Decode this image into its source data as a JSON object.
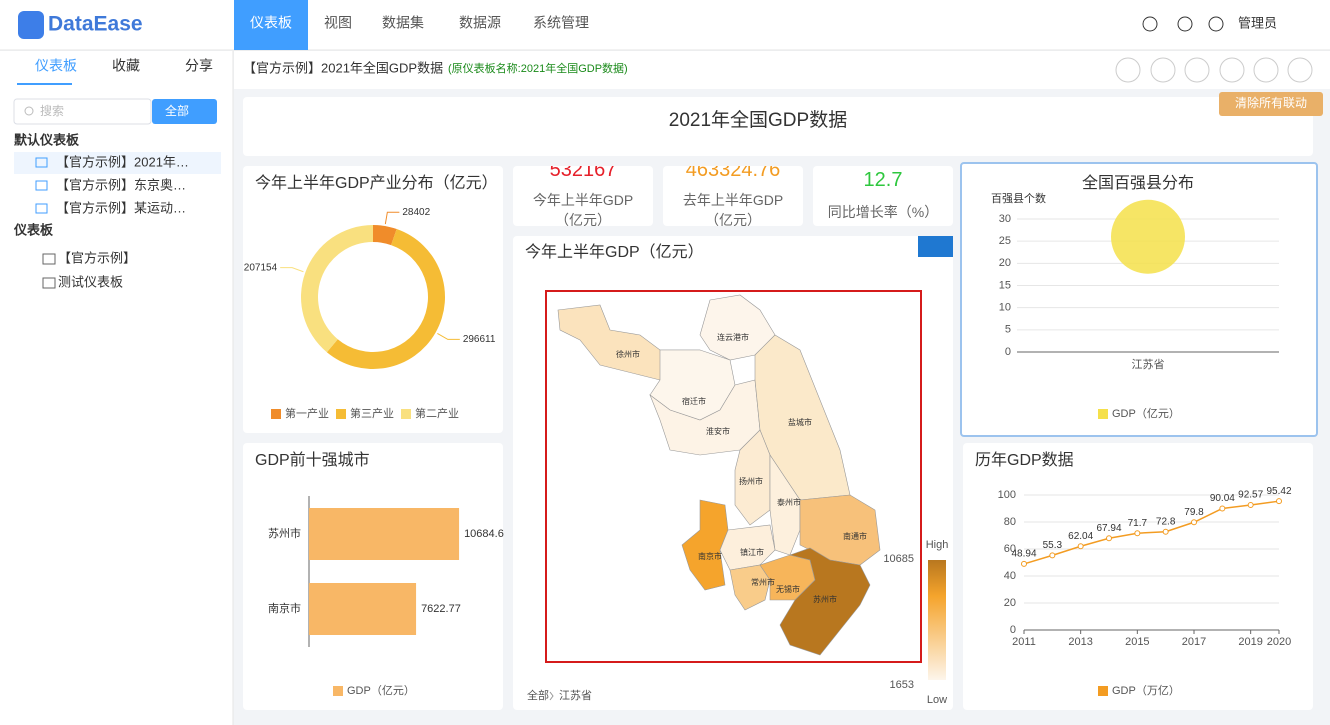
{
  "nav": {
    "logo": "DataEase",
    "menu": [
      "仪表板",
      "视图",
      "数据集",
      "数据源",
      "系统管理"
    ],
    "user": "管理员"
  },
  "sidebar": {
    "tabs": [
      "仪表板",
      "收藏",
      "分享"
    ],
    "search_placeholder": "搜索",
    "filter": "全部",
    "default_section": "默认仪表板",
    "default_items": [
      "【官方示例】2021年…",
      "【官方示例】东京奥…",
      "【官方示例】某运动…"
    ],
    "section": "仪表板",
    "tree": [
      "【官方示例】",
      "测试仪表板"
    ]
  },
  "header": {
    "title": "【官方示例】2021年全国GDP数据",
    "original_name": "(原仪表板名称:2021年全国GDP数据)",
    "clear_button": "清除所有联动"
  },
  "dashboard_title": "2021年全国GDP数据",
  "charts": [
    {
      "type": "pie",
      "title": "今年上半年GDP产业分布（亿元）",
      "categories": [
        "第一产业",
        "第三产业",
        "第二产业"
      ],
      "values": [
        28402,
        296611,
        207154
      ],
      "colors": [
        "#f08c2a",
        "#f5bc35",
        "#f9e07f"
      ]
    },
    {
      "type": "kpi",
      "value": 532167,
      "label": "今年上半年GDP（亿元）",
      "color": "#e6202a"
    },
    {
      "type": "kpi",
      "value": 463324.76,
      "label": "去年上半年GDP（亿元）",
      "color": "#f39c22"
    },
    {
      "type": "kpi",
      "value": 12.7,
      "label": "同比增长率（%）",
      "color": "#2ec73e"
    },
    {
      "type": "map",
      "title": "今年上半年GDP（亿元）",
      "regions": [
        {
          "name": "徐州市",
          "color": "#fbe3bd"
        },
        {
          "name": "连云港市",
          "color": "#fdf5eb"
        },
        {
          "name": "宿迁市",
          "color": "#fdf6ec"
        },
        {
          "name": "淮安市",
          "color": "#fdf3e6"
        },
        {
          "name": "盐城市",
          "color": "#fbe9ca"
        },
        {
          "name": "扬州市",
          "color": "#fcebd2"
        },
        {
          "name": "泰州市",
          "color": "#fdf0dd"
        },
        {
          "name": "南通市",
          "color": "#f7c17a"
        },
        {
          "name": "南京市",
          "color": "#f5a42c"
        },
        {
          "name": "镇江市",
          "color": "#fdefdc"
        },
        {
          "name": "常州市",
          "color": "#f9cc8a"
        },
        {
          "name": "无锡市",
          "color": "#f7b55a"
        },
        {
          "name": "苏州市",
          "color": "#b8771f"
        }
      ],
      "visual_max": 10685,
      "visual_min": 1653,
      "high": "High",
      "low": "Low",
      "breadcrumb": [
        "全部",
        "江苏省"
      ]
    },
    {
      "type": "scatter",
      "title": "全国百强县分布",
      "y_axis_label": "百强县个数",
      "categories": [
        "江苏省"
      ],
      "series": [
        {
          "name": "GDP（亿元）",
          "color": "#f5e04a",
          "values": [
            26
          ]
        }
      ],
      "ylim": [
        0,
        30
      ],
      "yticks": [
        0,
        5,
        10,
        15,
        20,
        25,
        30
      ],
      "grid": true
    },
    {
      "type": "hbar",
      "title": "GDP前十强城市",
      "categories": [
        "苏州市",
        "南京市"
      ],
      "series": [
        {
          "name": "GDP（亿元）",
          "color": "#f8b766",
          "values": [
            10684.6,
            7622.77
          ]
        }
      ],
      "xlim": [
        0,
        11000
      ]
    },
    {
      "type": "line",
      "title": "历年GDP数据",
      "x": [
        2011,
        2012,
        2013,
        2014,
        2015,
        2016,
        2017,
        2018,
        2019,
        2020
      ],
      "series": [
        {
          "name": "GDP（万亿）",
          "color": "#f39c22",
          "values": [
            48.94,
            55.3,
            62.04,
            67.94,
            71.7,
            72.8,
            79.8,
            90.04,
            92.57,
            95.42
          ]
        }
      ],
      "xlim": [
        2011,
        2020
      ],
      "xticks": [
        2011,
        2013,
        2015,
        2017,
        2019,
        2020
      ],
      "ylim": [
        0,
        100
      ],
      "yticks": [
        0,
        20,
        40,
        60,
        80,
        100
      ],
      "grid": true
    }
  ]
}
